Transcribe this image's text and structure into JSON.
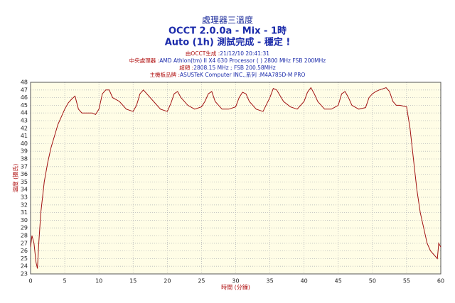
{
  "chart_data": {
    "type": "line",
    "title": "處理器三溫度",
    "subtitles": [
      "OCCT 2.0.0a - Mix - 1時",
      "Auto (1h) 測試完成 - 穩定 !"
    ],
    "info": [
      {
        "label": "由OCCT生成 :",
        "value": "21/12/10 20:41:31"
      },
      {
        "label": "中央處理器 :",
        "value": "AMD Athlon(tm) II X4 630 Processor (  ) 2800 MHz FSB 200MHz"
      },
      {
        "label": "超頻 :",
        "value": "2808.15 MHz ; FSB 200.58MHz"
      },
      {
        "label": "主機板品牌 :",
        "value": "ASUSTeK Computer INC.,系列 :M4A785D-M PRO"
      }
    ],
    "xlabel": "時間 (分鐘)",
    "ylabel": "溫度 (攝氏)",
    "color": "#a01010",
    "x": [
      0,
      0.2,
      0.5,
      0.8,
      1,
      1.2,
      1.5,
      2,
      2.5,
      3,
      3.5,
      4,
      4.5,
      5,
      5.5,
      6,
      6.5,
      7,
      7.5,
      8,
      9,
      9.5,
      10,
      10.5,
      11,
      11.5,
      12,
      13,
      14,
      15,
      15.5,
      16,
      16.5,
      17,
      18,
      19,
      20,
      20.5,
      21,
      21.5,
      22,
      23,
      24,
      25,
      25.5,
      26,
      26.5,
      27,
      28,
      29,
      30,
      30.5,
      31,
      31.5,
      32,
      33,
      34,
      35,
      35.5,
      36,
      37,
      38,
      39,
      40,
      40.5,
      41,
      41.5,
      42,
      43,
      44,
      45,
      45.5,
      46,
      46.5,
      47,
      48,
      49,
      49.5,
      50,
      50.5,
      51,
      52,
      52.5,
      53,
      53.5,
      54,
      55,
      55.5,
      56,
      56.5,
      57,
      57.5,
      58,
      58.5,
      59,
      59.5,
      59.7,
      60
    ],
    "values": [
      26.5,
      28,
      27,
      24.5,
      23.7,
      27,
      31,
      35,
      37.5,
      39.5,
      41,
      42.5,
      43.5,
      44.5,
      45.3,
      45.8,
      46.2,
      44.5,
      44,
      44,
      44,
      43.8,
      44.5,
      46.5,
      47,
      47,
      46,
      45.5,
      44.5,
      44.2,
      45,
      46.5,
      47,
      46.5,
      45.5,
      44.5,
      44.2,
      45.2,
      46.5,
      46.8,
      46,
      45,
      44.5,
      44.8,
      45.5,
      46.5,
      46.8,
      45.5,
      44.5,
      44.5,
      44.8,
      46,
      46.7,
      46.5,
      45.5,
      44.5,
      44.2,
      46,
      47.2,
      47,
      45.5,
      44.8,
      44.5,
      45.5,
      46.7,
      47.3,
      46.5,
      45.5,
      44.5,
      44.5,
      45,
      46.5,
      46.8,
      46,
      45,
      44.5,
      44.7,
      46,
      46.5,
      46.8,
      47,
      47.3,
      46.8,
      45.5,
      45,
      45,
      44.8,
      42,
      38,
      34,
      31,
      29,
      27,
      26,
      25.5,
      25,
      27,
      26.5
    ],
    "xlim": [
      0,
      60
    ],
    "xticks": [
      0,
      5,
      10,
      15,
      20,
      25,
      30,
      35,
      40,
      45,
      50,
      55,
      60
    ],
    "ylim": [
      23,
      48
    ],
    "yticks": [
      23,
      24,
      25,
      26,
      27,
      28,
      29,
      30,
      31,
      32,
      33,
      34,
      35,
      36,
      37,
      38,
      39,
      40,
      41,
      42,
      43,
      44,
      45,
      46,
      47,
      48
    ],
    "grid": true
  }
}
